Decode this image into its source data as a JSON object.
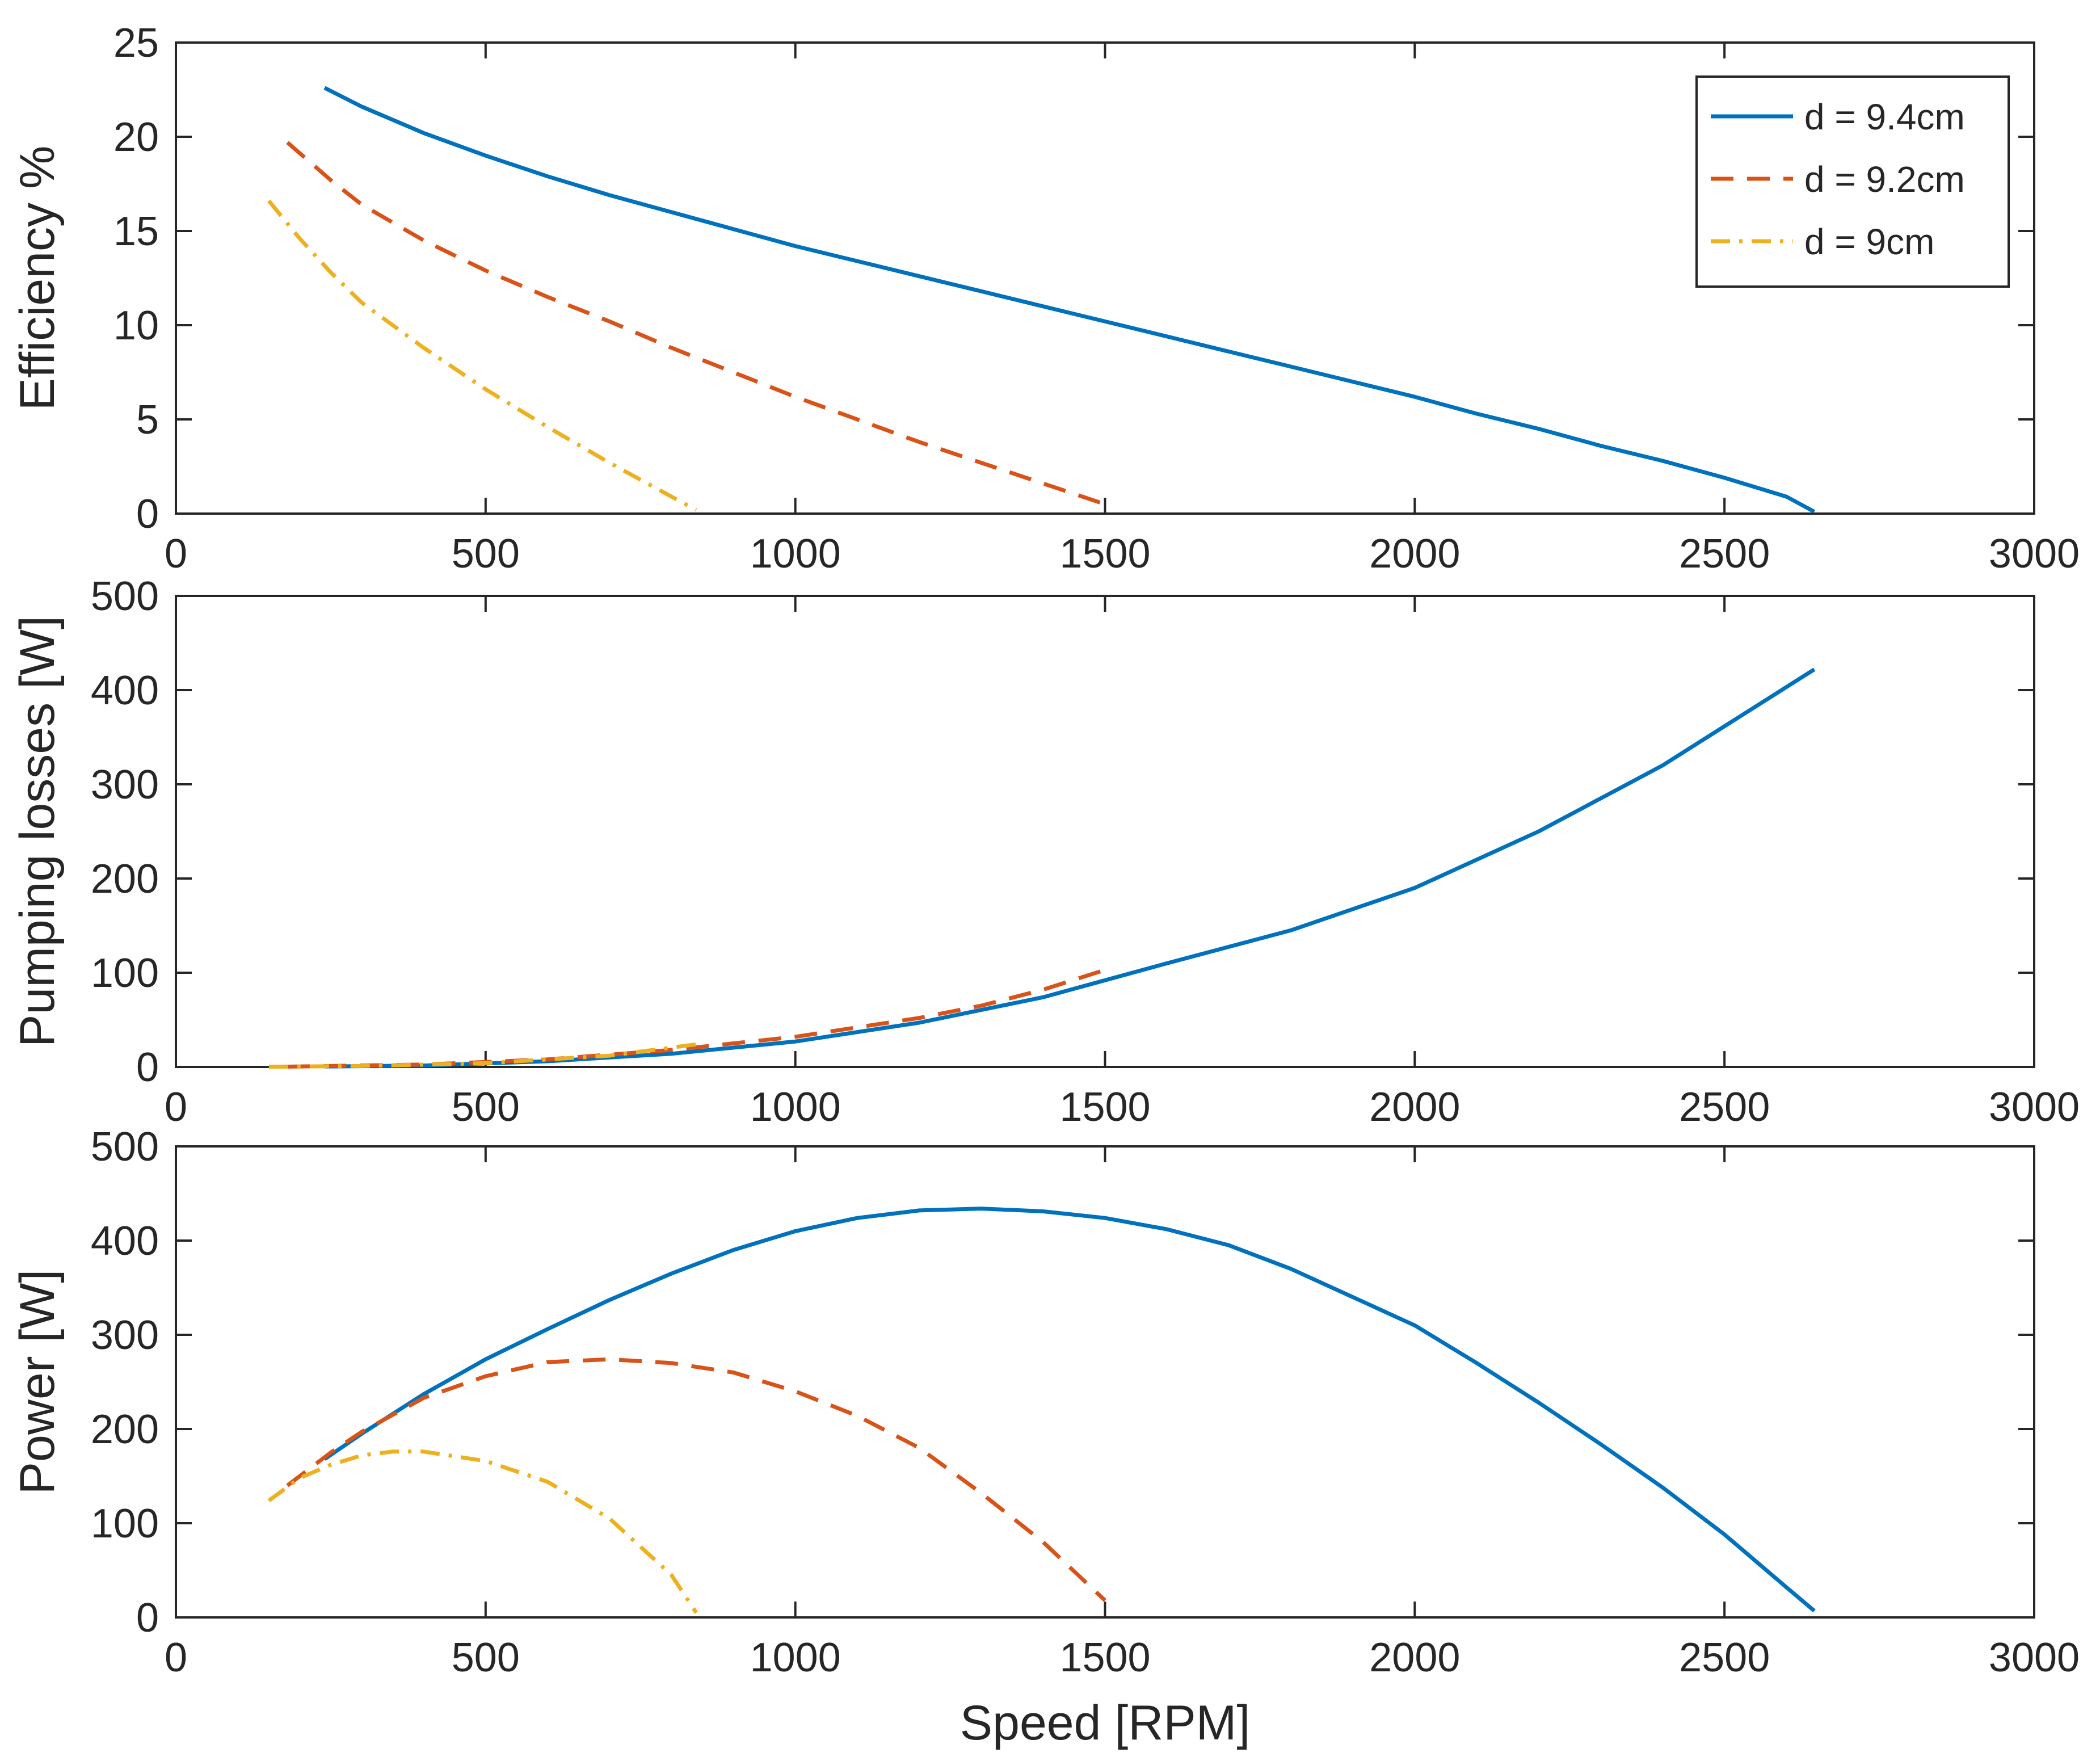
{
  "colors": {
    "series": [
      "#0072BD",
      "#D95319",
      "#EDB120"
    ],
    "axis": "#262626",
    "background": "#ffffff"
  },
  "chart_data": [
    {
      "type": "line",
      "ylabel": "Efficiency %",
      "xlabel": "",
      "xlim": [
        0,
        3000
      ],
      "ylim": [
        0,
        25
      ],
      "xticks": [
        0,
        500,
        1000,
        1500,
        2000,
        2500,
        3000
      ],
      "yticks": [
        0,
        5,
        10,
        15,
        20,
        25
      ],
      "xtick_labels": [
        "0",
        "500",
        "1000",
        "1500",
        "2000",
        "2500",
        "3000"
      ],
      "ytick_labels": [
        "0",
        "5",
        "10",
        "15",
        "20",
        "25"
      ],
      "legend": {
        "placement": "top-right",
        "entries": [
          "d = 9.4cm",
          "d = 9.2cm",
          "d = 9cm"
        ]
      },
      "series": [
        {
          "name": "d = 9.4cm",
          "style": "solid",
          "x": [
            240,
            300,
            400,
            500,
            600,
            700,
            800,
            900,
            1000,
            1100,
            1200,
            1300,
            1400,
            1500,
            1600,
            1700,
            1800,
            1900,
            2000,
            2100,
            2200,
            2300,
            2400,
            2500,
            2600,
            2645
          ],
          "y": [
            22.6,
            21.6,
            20.2,
            19.0,
            17.9,
            16.9,
            16.0,
            15.1,
            14.2,
            13.4,
            12.6,
            11.8,
            11.0,
            10.2,
            9.4,
            8.6,
            7.8,
            7.0,
            6.2,
            5.3,
            4.5,
            3.6,
            2.8,
            1.9,
            0.9,
            0.1
          ]
        },
        {
          "name": "d = 9.2cm",
          "style": "dashed",
          "x": [
            180,
            250,
            300,
            400,
            500,
            600,
            700,
            800,
            900,
            1000,
            1100,
            1200,
            1300,
            1400,
            1500
          ],
          "y": [
            19.7,
            17.7,
            16.4,
            14.5,
            12.9,
            11.5,
            10.2,
            8.8,
            7.5,
            6.2,
            5.0,
            3.8,
            2.7,
            1.6,
            0.5
          ]
        },
        {
          "name": "d = 9cm",
          "style": "dashdot",
          "x": [
            150,
            200,
            250,
            300,
            400,
            500,
            600,
            700,
            800,
            840
          ],
          "y": [
            16.6,
            14.6,
            12.8,
            11.2,
            8.8,
            6.6,
            4.6,
            2.7,
            0.9,
            0.2
          ]
        }
      ]
    },
    {
      "type": "line",
      "ylabel": "Pumping losses [W]",
      "xlabel": "",
      "xlim": [
        0,
        3000
      ],
      "ylim": [
        0,
        500
      ],
      "xticks": [
        0,
        500,
        1000,
        1500,
        2000,
        2500,
        3000
      ],
      "yticks": [
        0,
        100,
        200,
        300,
        400,
        500
      ],
      "xtick_labels": [
        "0",
        "500",
        "1000",
        "1500",
        "2000",
        "2500",
        "3000"
      ],
      "ytick_labels": [
        "0",
        "100",
        "200",
        "300",
        "400",
        "500"
      ],
      "series": [
        {
          "name": "d = 9.4cm",
          "style": "solid",
          "x": [
            240,
            400,
            600,
            800,
            1000,
            1200,
            1400,
            1600,
            1800,
            2000,
            2200,
            2400,
            2645
          ],
          "y": [
            0.5,
            1.5,
            6,
            14,
            27,
            47,
            74,
            110,
            145,
            190,
            250,
            320,
            422
          ]
        },
        {
          "name": "d = 9.2cm",
          "style": "dashed",
          "x": [
            180,
            400,
            600,
            800,
            1000,
            1200,
            1300,
            1400,
            1500
          ],
          "y": [
            0.3,
            2.5,
            8,
            18,
            32,
            52,
            65,
            82,
            103
          ]
        },
        {
          "name": "d = 9cm",
          "style": "dashdot",
          "x": [
            150,
            300,
            500,
            700,
            840
          ],
          "y": [
            0.2,
            1,
            4,
            12,
            24
          ]
        }
      ]
    },
    {
      "type": "line",
      "ylabel": "Power [W]",
      "xlabel": "Speed [RPM]",
      "xlim": [
        0,
        3000
      ],
      "ylim": [
        0,
        500
      ],
      "xticks": [
        0,
        500,
        1000,
        1500,
        2000,
        2500,
        3000
      ],
      "yticks": [
        0,
        100,
        200,
        300,
        400,
        500
      ],
      "xtick_labels": [
        "0",
        "500",
        "1000",
        "1500",
        "2000",
        "2500",
        "3000"
      ],
      "ytick_labels": [
        "0",
        "100",
        "200",
        "300",
        "400",
        "500"
      ],
      "series": [
        {
          "name": "d = 9.4cm",
          "style": "solid",
          "x": [
            240,
            300,
            400,
            500,
            600,
            700,
            800,
            900,
            1000,
            1100,
            1200,
            1300,
            1400,
            1500,
            1600,
            1700,
            1800,
            1900,
            2000,
            2100,
            2200,
            2300,
            2400,
            2500,
            2600,
            2645
          ],
          "y": [
            168,
            195,
            237,
            274,
            306,
            337,
            365,
            390,
            410,
            424,
            432,
            434,
            431,
            424,
            412,
            395,
            370,
            340,
            310,
            270,
            228,
            184,
            138,
            88,
            32,
            7
          ]
        },
        {
          "name": "d = 9.2cm",
          "style": "dashed",
          "x": [
            180,
            250,
            300,
            400,
            500,
            600,
            700,
            800,
            900,
            1000,
            1100,
            1200,
            1300,
            1400,
            1500
          ],
          "y": [
            140,
            175,
            197,
            233,
            256,
            271,
            274,
            270,
            260,
            240,
            214,
            180,
            132,
            80,
            18
          ]
        },
        {
          "name": "d = 9cm",
          "style": "dashdot",
          "x": [
            150,
            200,
            250,
            300,
            350,
            400,
            500,
            600,
            700,
            800,
            840
          ],
          "y": [
            124,
            148,
            162,
            172,
            176,
            176,
            166,
            144,
            105,
            45,
            5
          ]
        }
      ]
    }
  ]
}
